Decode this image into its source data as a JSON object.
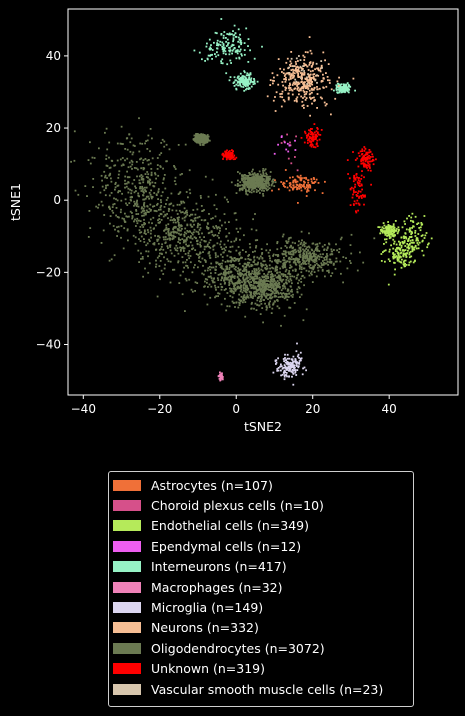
{
  "chart_data": {
    "type": "scatter",
    "xlabel": "tSNE2",
    "ylabel": "tSNE1",
    "xlim": [
      -44,
      58
    ],
    "ylim": [
      -54,
      53
    ],
    "xticks": [
      -40,
      -20,
      0,
      20,
      40
    ],
    "yticks": [
      -40,
      -20,
      0,
      20,
      40
    ],
    "tick_labels_x": [
      "−40",
      "−20",
      "0",
      "20",
      "40"
    ],
    "tick_labels_y": [
      "−40",
      "−20",
      "0",
      "20",
      "40"
    ],
    "grid": false,
    "legend_position": "below",
    "series": [
      {
        "name": "Astrocytes (n=107)",
        "color": "#f07038",
        "n": 107,
        "clusters": [
          {
            "x": 17,
            "y": 4.5,
            "sx": 2.5,
            "sy": 1.3
          }
        ]
      },
      {
        "name": "Choroid plexus cells (n=10)",
        "color": "#d6508a",
        "n": 10,
        "clusters": [
          {
            "x": 13.5,
            "y": 15,
            "sx": 1.8,
            "sy": 3.5
          }
        ]
      },
      {
        "name": "Endothelial cells (n=349)",
        "color": "#b5ea5a",
        "n": 349,
        "clusters": [
          {
            "x": 46,
            "y": -10.5,
            "sx": 2.2,
            "sy": 2.8
          },
          {
            "x": 43,
            "y": -15,
            "sx": 2.0,
            "sy": 2.0
          },
          {
            "x": 40,
            "y": -8.5,
            "sx": 1.0,
            "sy": 1.0
          }
        ]
      },
      {
        "name": "Ependymal cells (n=12)",
        "color": "#ee5ef0",
        "n": 12,
        "clusters": [
          {
            "x": 13,
            "y": 15.5,
            "sx": 1.6,
            "sy": 2.0
          }
        ]
      },
      {
        "name": "Interneurons (n=417)",
        "color": "#96f2c5",
        "n": 417,
        "clusters": [
          {
            "x": -2,
            "y": 43,
            "sx": 3.0,
            "sy": 2.4
          },
          {
            "x": 2,
            "y": 33,
            "sx": 1.2,
            "sy": 1.0
          },
          {
            "x": 28,
            "y": 31,
            "sx": 1.0,
            "sy": 0.6
          }
        ]
      },
      {
        "name": "Macrophages (n=32)",
        "color": "#ef82b8",
        "n": 32,
        "clusters": [
          {
            "x": -4,
            "y": -49,
            "sx": 0.4,
            "sy": 0.6
          }
        ]
      },
      {
        "name": "Microglia (n=149)",
        "color": "#dcd6f0",
        "n": 149,
        "clusters": [
          {
            "x": 14,
            "y": -46,
            "sx": 1.6,
            "sy": 1.6
          }
        ]
      },
      {
        "name": "Neurons (n=332)",
        "color": "#f6be94",
        "n": 332,
        "clusters": [
          {
            "x": 17.5,
            "y": 33,
            "sx": 3.5,
            "sy": 3.2
          }
        ]
      },
      {
        "name": "Oligodendrocytes (n=3072)",
        "color": "#6b7a52",
        "n": 3072,
        "clusters": [
          {
            "x": -26,
            "y": 3,
            "sx": 6.5,
            "sy": 7.5
          },
          {
            "x": -13,
            "y": -10,
            "sx": 7.0,
            "sy": 5.0
          },
          {
            "x": 1,
            "y": -21,
            "sx": 5.0,
            "sy": 3.5
          },
          {
            "x": 8,
            "y": -24,
            "sx": 4.0,
            "sy": 3.0
          },
          {
            "x": 18,
            "y": -16,
            "sx": 5.0,
            "sy": 2.5
          },
          {
            "x": 5,
            "y": 5,
            "sx": 2.0,
            "sy": 1.3
          },
          {
            "x": -9,
            "y": 17,
            "sx": 0.8,
            "sy": 0.6
          }
        ]
      },
      {
        "name": "Unknown (n=319)",
        "color": "#ff0000",
        "n": 319,
        "clusters": [
          {
            "x": 20,
            "y": 17.5,
            "sx": 1.0,
            "sy": 1.3
          },
          {
            "x": 32,
            "y": 4,
            "sx": 1.3,
            "sy": 3.5
          },
          {
            "x": 34,
            "y": 11.5,
            "sx": 1.0,
            "sy": 1.5
          },
          {
            "x": -2,
            "y": 12.5,
            "sx": 0.8,
            "sy": 0.6
          }
        ]
      },
      {
        "name": "Vascular smooth muscle cells (n=23)",
        "color": "#d7c6ad",
        "n": 23,
        "clusters": [
          {
            "x": 18,
            "y": 36,
            "sx": 3.0,
            "sy": 2.5
          }
        ]
      }
    ]
  }
}
